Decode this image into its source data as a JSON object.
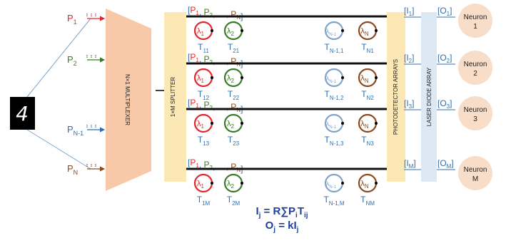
{
  "multiplexer_label": "N×1 MULTIPLEXER",
  "splitter_label": "1×M SPLITTER",
  "photodetector_label": "PHOTODETECTOR ARRAYS",
  "laser_label": "LASER DIODE ARRAY",
  "digit_glyph": "4",
  "inputs": [
    {
      "label": "P",
      "sub": "1",
      "color": "#e3262b"
    },
    {
      "label": "P",
      "sub": "2",
      "color": "#3a7a28"
    },
    {
      "label": "P",
      "sub": "N-1",
      "color": "#2f6fb0"
    },
    {
      "label": "P",
      "sub": "N",
      "color": "#8a4a1e"
    }
  ],
  "rows": [
    {
      "header": [
        "P",
        "1",
        "P",
        "2",
        "…",
        "P",
        "N"
      ],
      "weights": [
        "T",
        "11",
        "T",
        "21",
        "T",
        "N-1,1",
        "T",
        "N1"
      ],
      "current": [
        "I",
        "1"
      ],
      "output": [
        "O",
        "1"
      ],
      "neuron": [
        "Neuron",
        "1"
      ]
    },
    {
      "header": [
        "P",
        "1",
        "P",
        "2",
        "…",
        "P",
        "N"
      ],
      "weights": [
        "T",
        "12",
        "T",
        "22",
        "T",
        "N-1,2",
        "T",
        "N2"
      ],
      "current": [
        "I",
        "2"
      ],
      "output": [
        "O",
        "2"
      ],
      "neuron": [
        "Neuron",
        "2"
      ]
    },
    {
      "header": [
        "P",
        "1",
        "P",
        "2",
        "…",
        "P",
        "N"
      ],
      "weights": [
        "T",
        "13",
        "T",
        "23",
        "T",
        "N-1,3",
        "T",
        "N3"
      ],
      "current": [
        "I",
        "3"
      ],
      "output": [
        "O",
        "3"
      ],
      "neuron": [
        "Neuron",
        "3"
      ]
    },
    {
      "header": [
        "P",
        "1",
        "P",
        "2",
        "…",
        "P",
        "N"
      ],
      "weights": [
        "T",
        "1M",
        "T",
        "2M",
        "T",
        "N-1,M",
        "T",
        "NM"
      ],
      "current": [
        "I",
        "M"
      ],
      "output": [
        "O",
        "M"
      ],
      "neuron": [
        "Neuron",
        "M"
      ]
    }
  ],
  "rings": [
    {
      "label": "λ",
      "sub": "1",
      "color": "#e3262b"
    },
    {
      "label": "λ",
      "sub": "2",
      "color": "#3a7a28"
    },
    {
      "label": "λ",
      "sub": "N-1",
      "color": "#7fa3c9"
    },
    {
      "label": "λ",
      "sub": "N",
      "color": "#8a4a1e"
    }
  ],
  "formula1": {
    "lhs": "I",
    "lhs_sub": "j",
    "mid": " = R∑P",
    "mid_sub": "i",
    "t": "T",
    "t_sub": "ij"
  },
  "formula2": {
    "lhs": "O",
    "lhs_sub": "j",
    "rhs": " = kI",
    "rhs_sub": "j"
  },
  "colors": {
    "accent_blue": "#2f6fb0",
    "mux_fill": "#f8c9a8",
    "splitter_fill": "#fbe8b4",
    "pd_fill": "#fbe8b4",
    "laser_fill": "#dde8f5",
    "neuron_fill": "#f8ddc9"
  }
}
